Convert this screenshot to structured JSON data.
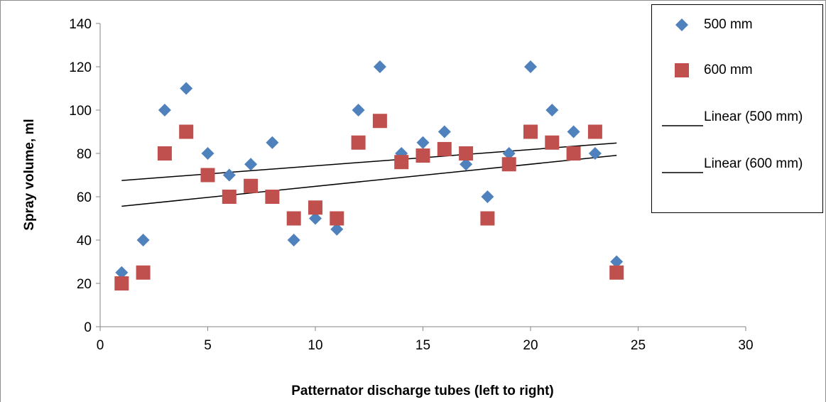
{
  "chart_data": {
    "type": "scatter",
    "title": "",
    "xlabel": "Patternator discharge tubes (left to right)",
    "ylabel": "Spray volume, ml",
    "xlim": [
      0,
      30
    ],
    "ylim": [
      0,
      140
    ],
    "xticks": [
      "0",
      "5",
      "10",
      "15",
      "20",
      "25",
      "30"
    ],
    "yticks": [
      "0",
      "20",
      "40",
      "60",
      "80",
      "100",
      "120",
      "140"
    ],
    "grid": false,
    "legend_position": "top-right",
    "series": [
      {
        "name": "500 mm",
        "marker": "diamond",
        "color": "#4f81bd",
        "x": [
          1,
          2,
          3,
          4,
          5,
          6,
          7,
          8,
          9,
          10,
          11,
          12,
          13,
          14,
          15,
          16,
          17,
          18,
          19,
          20,
          21,
          22,
          23,
          24
        ],
        "y": [
          25,
          40,
          100,
          110,
          80,
          70,
          75,
          85,
          40,
          50,
          45,
          100,
          120,
          80,
          85,
          90,
          75,
          60,
          80,
          120,
          100,
          90,
          80,
          30
        ]
      },
      {
        "name": "600 mm",
        "marker": "square",
        "color": "#c0504d",
        "x": [
          1,
          2,
          3,
          4,
          5,
          6,
          7,
          8,
          9,
          10,
          11,
          12,
          13,
          14,
          15,
          16,
          17,
          18,
          19,
          20,
          21,
          22,
          23,
          24
        ],
        "y": [
          20,
          25,
          80,
          90,
          70,
          60,
          65,
          60,
          50,
          55,
          50,
          85,
          95,
          76,
          79,
          82,
          80,
          50,
          75,
          90,
          85,
          80,
          90,
          25
        ]
      }
    ],
    "trendlines": [
      {
        "name": "Linear (500 mm)",
        "type": "linear",
        "color": "#000000",
        "x": [
          1,
          24
        ],
        "y": [
          67.5,
          84.8
        ]
      },
      {
        "name": "Linear (600 mm)",
        "type": "linear",
        "color": "#000000",
        "x": [
          1,
          24
        ],
        "y": [
          55.6,
          79.1
        ]
      }
    ],
    "legend": {
      "entries": [
        "500 mm",
        "600 mm",
        "Linear (500 mm)",
        "Linear (600 mm)"
      ]
    }
  }
}
